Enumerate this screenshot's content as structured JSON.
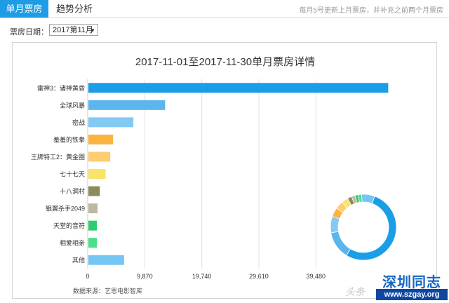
{
  "tabs": [
    {
      "label": "单月票房",
      "active": true
    },
    {
      "label": "趋势分析",
      "active": false
    }
  ],
  "tab_note": "每月5号更新上月票房，并补充之前两个月票房",
  "date_filter": {
    "label": "票房日期：",
    "value": "2017第11月",
    "caret": "▼"
  },
  "chart_data": {
    "type": "bar",
    "orientation": "horizontal",
    "title": "2017-11-01至2017-11-30单月票房详情",
    "categories": [
      "雷神3：诸神黄昏",
      "全球风暴",
      "密战",
      "羞羞的铁拳",
      "王牌特工2：黄金圈",
      "七十七天",
      "十八洞村",
      "银翼杀手2049",
      "天堂的音符",
      "相爱相亲",
      "其他"
    ],
    "values": [
      52000,
      13400,
      7900,
      4400,
      3900,
      3100,
      2100,
      1700,
      1600,
      1600,
      6300
    ],
    "colors": [
      "#1a9ee8",
      "#5bb5ee",
      "#82c9f3",
      "#fcb441",
      "#fdcd70",
      "#fae36b",
      "#8f8a5d",
      "#bbb9a0",
      "#2ecc71",
      "#48e08a",
      "#74c6f4"
    ],
    "x_ticks": [
      "0",
      "9,870",
      "19,740",
      "29,610",
      "39,480"
    ],
    "tick_values": [
      0,
      9870,
      19740,
      29610,
      39480
    ],
    "xlim": [
      0,
      54500
    ],
    "grid": true,
    "inset": {
      "type": "donut"
    }
  },
  "source": "数据来源：艺恩电影智库",
  "watermark": {
    "text": "头条",
    "logo_title": "深圳同志",
    "logo_url": "www.szgay.org"
  }
}
